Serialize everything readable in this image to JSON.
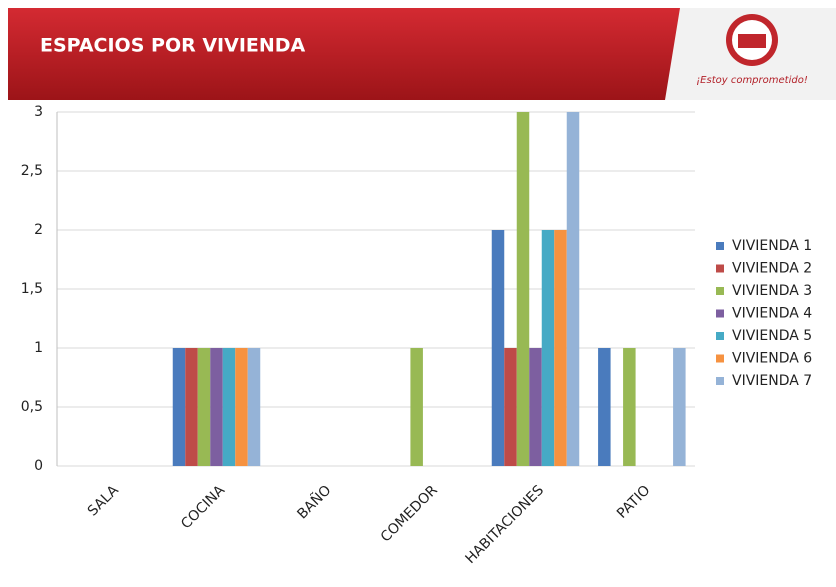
{
  "header": {
    "slogan": "¡Estoy comprometido!"
  },
  "chart_data": {
    "type": "bar",
    "title": "ESPACIOS POR VIVIENDA",
    "categories": [
      "SALA",
      "COCINA",
      "BAÑO",
      "COMEDOR",
      "HABITACIONES",
      "PATIO"
    ],
    "series": [
      {
        "name": "VIVIENDA 1",
        "color": "#4a7bbd",
        "values": [
          0,
          1,
          0,
          0,
          2,
          1
        ]
      },
      {
        "name": "VIVIENDA 2",
        "color": "#be4b48",
        "values": [
          0,
          1,
          0,
          0,
          1,
          0
        ]
      },
      {
        "name": "VIVIENDA 3",
        "color": "#98b954",
        "values": [
          0,
          1,
          0,
          1,
          3,
          1
        ]
      },
      {
        "name": "VIVIENDA 4",
        "color": "#7d5fa0",
        "values": [
          0,
          1,
          0,
          0,
          1,
          0
        ]
      },
      {
        "name": "VIVIENDA 5",
        "color": "#46aac5",
        "values": [
          0,
          1,
          0,
          0,
          2,
          0
        ]
      },
      {
        "name": "VIVIENDA 6",
        "color": "#f69240",
        "values": [
          0,
          1,
          0,
          0,
          2,
          0
        ]
      },
      {
        "name": "VIVIENDA 7",
        "color": "#95b3d7",
        "values": [
          0,
          1,
          0,
          0,
          3,
          1
        ]
      }
    ],
    "ylim": [
      0,
      3
    ],
    "yticks": [
      0,
      {
        "value": 0.5,
        "label": "0,5"
      },
      1,
      {
        "value": 1.5,
        "label": "1,5"
      },
      2,
      {
        "value": 2.5,
        "label": "2,5"
      },
      3
    ],
    "grid": true,
    "legend": "right"
  }
}
